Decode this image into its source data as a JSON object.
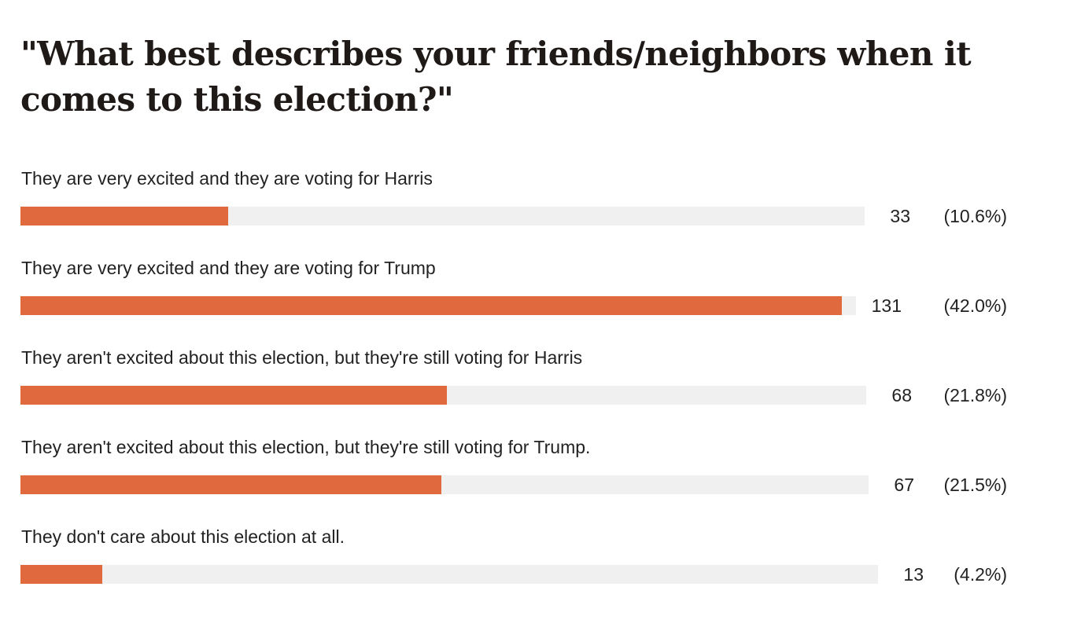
{
  "chart_data": {
    "type": "bar",
    "orientation": "horizontal",
    "title": "\"What best describes your friends/neighbors when it comes to this election?\"",
    "categories": [
      "They are very excited and they are voting for Harris",
      "They are very excited and they are voting for Trump",
      "They aren't excited about this election, but they're still voting for Harris",
      "They aren't excited about this election, but they're still voting for Trump.",
      "They don't care about this election at all."
    ],
    "values": [
      33,
      131,
      68,
      67,
      13
    ],
    "percent_labels": [
      "(10.6%)",
      "(42.0%)",
      "(21.8%)",
      "(21.5%)",
      "(4.2%)"
    ],
    "percentages": [
      10.6,
      42.0,
      21.8,
      21.5,
      4.2
    ],
    "bar_color": "#e0693e",
    "track_color": "#f0f0f0",
    "grid": false,
    "legend": "none"
  }
}
